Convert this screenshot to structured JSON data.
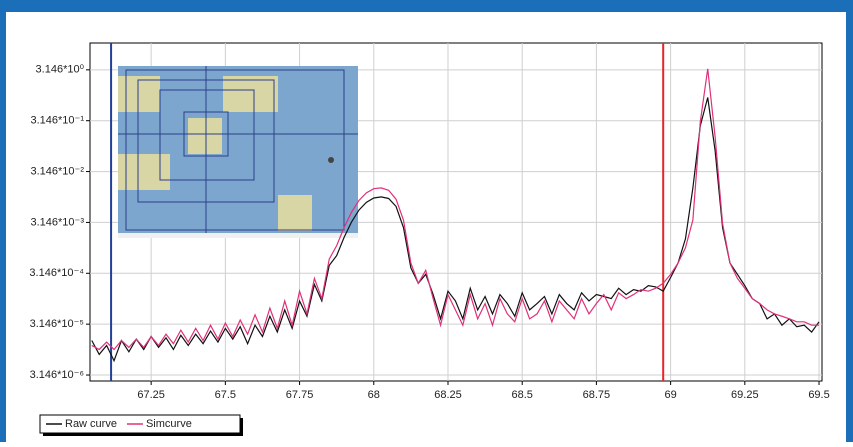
{
  "chart_data": {
    "type": "line",
    "log_y": true,
    "grid": true,
    "legend": "bottom-left",
    "xlim": [
      67.044,
      69.51
    ],
    "ylim": [
      2.4e-06,
      10.6
    ],
    "xticks": [
      67.25,
      67.5,
      67.75,
      68,
      68.25,
      68.5,
      68.75,
      69,
      69.25,
      69.5
    ],
    "yticks": [
      {
        "value": 3.146,
        "label": "3.146*10⁰"
      },
      {
        "value": 0.3146,
        "label": "3.146*10⁻¹"
      },
      {
        "value": 0.03146,
        "label": "3.146*10⁻²"
      },
      {
        "value": 0.003146,
        "label": "3.146*10⁻³"
      },
      {
        "value": 0.0003146,
        "label": "3.146*10⁻⁴"
      },
      {
        "value": 3.146e-05,
        "label": "3.146*10⁻⁵"
      },
      {
        "value": 3.146e-06,
        "label": "3.146*10⁻⁶"
      }
    ],
    "cursors": [
      {
        "x": 67.115,
        "color": "#22409a"
      },
      {
        "x": 68.975,
        "color": "#e82424"
      }
    ],
    "x": [
      67.05,
      67.075,
      67.1,
      67.125,
      67.15,
      67.175,
      67.2,
      67.225,
      67.25,
      67.275,
      67.3,
      67.325,
      67.35,
      67.375,
      67.4,
      67.425,
      67.45,
      67.475,
      67.5,
      67.525,
      67.55,
      67.575,
      67.6,
      67.625,
      67.65,
      67.675,
      67.7,
      67.725,
      67.75,
      67.775,
      67.8,
      67.825,
      67.85,
      67.875,
      67.9,
      67.925,
      67.95,
      67.975,
      68,
      68.025,
      68.05,
      68.075,
      68.1,
      68.125,
      68.15,
      68.175,
      68.2,
      68.225,
      68.25,
      68.275,
      68.3,
      68.325,
      68.35,
      68.375,
      68.4,
      68.425,
      68.45,
      68.475,
      68.5,
      68.525,
      68.55,
      68.575,
      68.6,
      68.625,
      68.65,
      68.675,
      68.7,
      68.725,
      68.75,
      68.775,
      68.8,
      68.825,
      68.85,
      68.875,
      68.9,
      68.925,
      68.95,
      68.975,
      69,
      69.025,
      69.05,
      69.075,
      69.1,
      69.125,
      69.15,
      69.175,
      69.2,
      69.225,
      69.25,
      69.275,
      69.3,
      69.325,
      69.35,
      69.375,
      69.4,
      69.425,
      69.45,
      69.475,
      69.5
    ],
    "series": [
      {
        "name": "Raw curve",
        "color": "#111111",
        "values": [
          1.5e-05,
          8e-06,
          1.2e-05,
          6e-06,
          1.5e-05,
          9e-06,
          1.6e-05,
          1e-05,
          1.8e-05,
          1.1e-05,
          1.7e-05,
          1e-05,
          1.9e-05,
          1.2e-05,
          2e-05,
          1.3e-05,
          2.3e-05,
          1.4e-05,
          2.6e-05,
          1.6e-05,
          2.8e-05,
          1.3e-05,
          3e-05,
          1.8e-05,
          4.5e-05,
          2.2e-05,
          6e-05,
          2.6e-05,
          9e-05,
          4.5e-05,
          0.00019,
          9e-05,
          0.00045,
          0.0007,
          0.0016,
          0.0032,
          0.0055,
          0.0078,
          0.0095,
          0.01,
          0.0093,
          0.0065,
          0.0025,
          0.0004,
          0.0002,
          0.0003,
          0.00012,
          4e-05,
          0.00014,
          9e-05,
          4e-05,
          0.00016,
          6e-05,
          0.00011,
          5e-05,
          0.00012,
          8e-05,
          4.5e-05,
          0.00013,
          6e-05,
          8e-05,
          0.00011,
          5e-05,
          0.00012,
          8e-05,
          6e-05,
          0.00013,
          9e-05,
          0.00012,
          0.00011,
          0.0001,
          0.00016,
          0.00012,
          0.00015,
          0.00014,
          0.00018,
          0.00017,
          0.00014,
          0.00026,
          0.0005,
          0.0015,
          0.015,
          0.25,
          0.9,
          0.08,
          0.0025,
          0.0005,
          0.0003,
          0.00018,
          0.0001,
          8e-05,
          4e-05,
          5e-05,
          3e-05,
          4e-05,
          2.8e-05,
          3e-05,
          2.2e-05,
          3.5e-05
        ]
      },
      {
        "name": "Simcurve",
        "color": "#e0307a",
        "values": [
          1.2e-05,
          1e-05,
          1.4e-05,
          1e-05,
          1.5e-05,
          1.1e-05,
          1.6e-05,
          1.1e-05,
          1.8e-05,
          1.2e-05,
          2e-05,
          1.3e-05,
          2.4e-05,
          1.4e-05,
          2.6e-05,
          1.5e-05,
          3e-05,
          1.6e-05,
          3.3e-05,
          1.8e-05,
          3.8e-05,
          2e-05,
          4.8e-05,
          2.2e-05,
          6.5e-05,
          2.6e-05,
          9e-05,
          3e-05,
          0.00014,
          5e-05,
          0.00025,
          0.0001,
          0.0006,
          0.0011,
          0.0025,
          0.005,
          0.0085,
          0.012,
          0.0145,
          0.015,
          0.0135,
          0.009,
          0.0035,
          0.0005,
          0.0002,
          0.00036,
          0.0001,
          3e-05,
          0.00012,
          6e-05,
          3e-05,
          0.00012,
          4e-05,
          8e-05,
          3e-05,
          0.0001,
          5e-05,
          3.5e-05,
          0.0001,
          4e-05,
          5e-05,
          9e-05,
          3.5e-05,
          9e-05,
          6e-05,
          4e-05,
          0.0001,
          5e-05,
          8e-05,
          0.00012,
          6e-05,
          0.00013,
          0.0001,
          0.00012,
          0.00015,
          0.00014,
          0.00016,
          0.0002,
          0.0003,
          0.0005,
          0.001,
          0.0035,
          0.3,
          3.3,
          0.15,
          0.003,
          0.0005,
          0.00025,
          0.00016,
          0.0001,
          8e-05,
          6e-05,
          5e-05,
          4.5e-05,
          4e-05,
          3.5e-05,
          3.5e-05,
          3e-05,
          3e-05
        ]
      }
    ]
  }
}
